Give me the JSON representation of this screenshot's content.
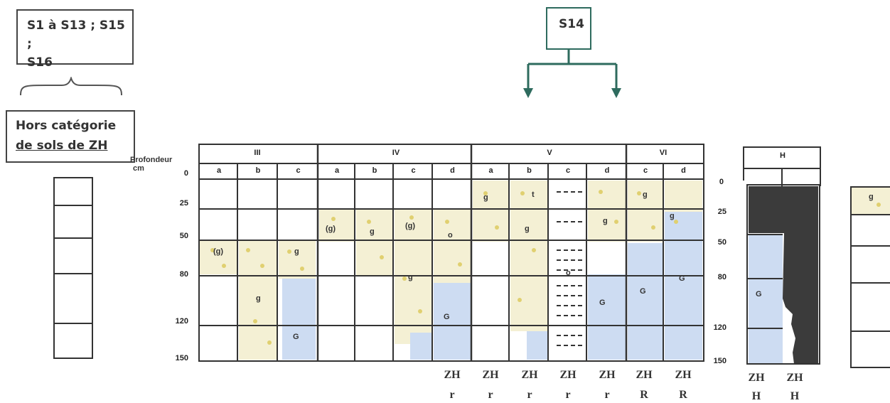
{
  "boxes": {
    "s1_s16": [
      "S1 à S13 ; S15 ;",
      "S16"
    ],
    "s14": "S14",
    "hors": [
      "Hors catégorie",
      "de sols de ZH"
    ]
  },
  "axis": {
    "depth_title": [
      "Profondeur",
      "cm"
    ],
    "depths": [
      "0",
      "25",
      "50",
      "80",
      "120",
      "150"
    ],
    "h_depths": [
      "0",
      "25",
      "50",
      "80",
      "120",
      "150"
    ]
  },
  "classes": {
    "groups": [
      {
        "name": "III",
        "subs": [
          "a",
          "b",
          "c"
        ]
      },
      {
        "name": "IV",
        "subs": [
          "a",
          "b",
          "c",
          "d"
        ]
      },
      {
        "name": "V",
        "subs": [
          "a",
          "b",
          "c",
          "d"
        ]
      },
      {
        "name": "VI",
        "subs": [
          "c",
          "d"
        ]
      }
    ],
    "h_group": "H"
  },
  "marks": {
    "g": "g",
    "g_paren": "(g)",
    "G": "G",
    "t": "t",
    "o": "o"
  },
  "zh_labels": [
    {
      "top": "ZH",
      "bottom": "r"
    },
    {
      "top": "ZH",
      "bottom": "r"
    },
    {
      "top": "ZH",
      "bottom": "r"
    },
    {
      "top": "ZH",
      "bottom": "r"
    },
    {
      "top": "ZH",
      "bottom": "r"
    },
    {
      "top": "ZH",
      "bottom": "R"
    },
    {
      "top": "ZH",
      "bottom": "R"
    }
  ],
  "zh_h_labels": [
    {
      "top": "ZH",
      "bottom": "H"
    },
    {
      "top": "ZH",
      "bottom": "H"
    }
  ],
  "colors": {
    "grid": "#333333",
    "redox_dots": "#e8e0a0",
    "reduct": "#cddcf2",
    "peat": "#3b3b3b"
  }
}
